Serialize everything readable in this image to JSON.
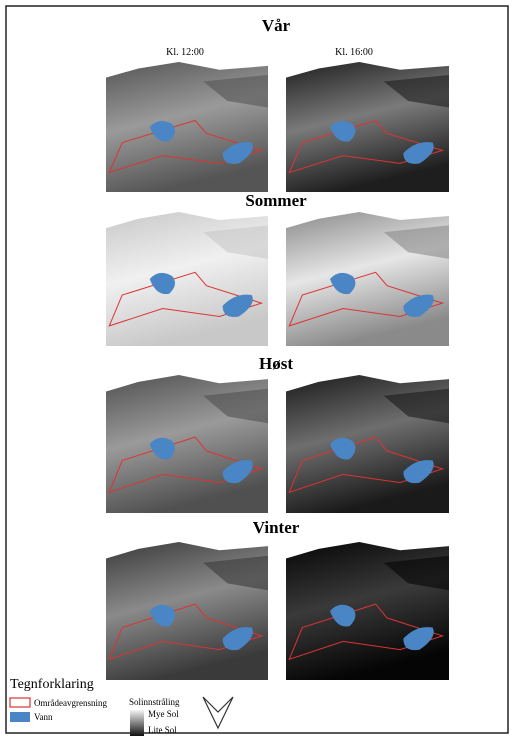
{
  "time_labels": [
    "Kl. 12:00",
    "Kl. 16:00"
  ],
  "seasons": [
    {
      "title": "Vår"
    },
    {
      "title": "Sommer"
    },
    {
      "title": "Høst"
    },
    {
      "title": "Vinter"
    }
  ],
  "legend": {
    "title": "Tegnforklaring",
    "boundary": "Områdeavgrensning",
    "water": "Vann",
    "radiation_title": "Solinnstråling",
    "radiation_high": "Mye Sol",
    "radiation_low": "Lite Sol"
  }
}
